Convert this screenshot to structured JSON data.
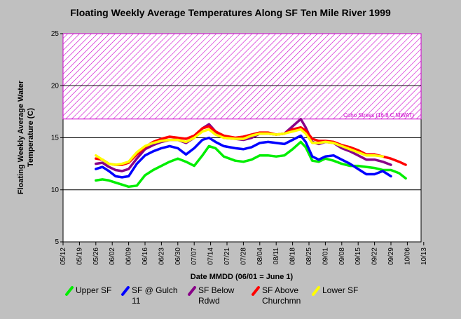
{
  "chart_data": {
    "type": "line",
    "title": "Floating Weekly Average Temperatures Along SF Ten Mile River 1999",
    "xlabel": "Date MMDD (06/01 = June 1)",
    "ylabel_line1": "Floating Weekly Average Water",
    "ylabel_line2": "Temperature (C)",
    "ylim": [
      5,
      25
    ],
    "yticks": [
      5,
      10,
      15,
      20,
      25
    ],
    "x_tick_labels": [
      "05/12",
      "05/19",
      "05/26",
      "06/02",
      "06/09",
      "06/16",
      "06/23",
      "06/30",
      "07/07",
      "07/14",
      "07/21",
      "07/28",
      "08/04",
      "08/11",
      "08/18",
      "08/25",
      "09/01",
      "09/08",
      "09/15",
      "09/22",
      "09/29",
      "10/06",
      "10/13"
    ],
    "x_range": [
      0,
      22.8
    ],
    "grid": "horizontal",
    "band": {
      "y_min": 16.8,
      "y_max": 25,
      "color": "#cc00cc",
      "label": "Coho Stress (16.8 C MWAT)"
    },
    "legend_position": "bottom",
    "series": [
      {
        "name": "Upper SF",
        "color": "#00ee00",
        "points": [
          [
            2.0,
            10.9
          ],
          [
            2.4,
            11.0
          ],
          [
            2.8,
            10.9
          ],
          [
            3.2,
            10.7
          ],
          [
            3.6,
            10.5
          ],
          [
            4.0,
            10.3
          ],
          [
            4.5,
            10.4
          ],
          [
            5.0,
            11.4
          ],
          [
            5.5,
            11.9
          ],
          [
            6.0,
            12.3
          ],
          [
            6.5,
            12.7
          ],
          [
            7.0,
            13.0
          ],
          [
            7.5,
            12.7
          ],
          [
            8.0,
            12.3
          ],
          [
            8.5,
            13.3
          ],
          [
            8.9,
            14.2
          ],
          [
            9.3,
            14.0
          ],
          [
            9.8,
            13.2
          ],
          [
            10.5,
            12.8
          ],
          [
            11.0,
            12.7
          ],
          [
            11.5,
            12.9
          ],
          [
            12.0,
            13.3
          ],
          [
            12.5,
            13.3
          ],
          [
            13.0,
            13.2
          ],
          [
            13.5,
            13.3
          ],
          [
            14.0,
            13.9
          ],
          [
            14.5,
            14.6
          ],
          [
            14.8,
            14.1
          ],
          [
            15.2,
            12.8
          ],
          [
            15.6,
            12.7
          ],
          [
            16.0,
            13.0
          ],
          [
            16.5,
            12.8
          ],
          [
            17.0,
            12.5
          ],
          [
            17.5,
            12.3
          ],
          [
            18.0,
            12.3
          ],
          [
            18.5,
            12.2
          ],
          [
            19.0,
            12.1
          ],
          [
            19.5,
            11.9
          ],
          [
            20.0,
            11.9
          ],
          [
            20.5,
            11.6
          ],
          [
            20.9,
            11.1
          ]
        ]
      },
      {
        "name": "SF @ Gulch 11",
        "name_line1": "SF @ Gulch",
        "name_line2": "11",
        "color": "#0000ff",
        "points": [
          [
            2.0,
            12.0
          ],
          [
            2.4,
            12.2
          ],
          [
            2.8,
            11.8
          ],
          [
            3.2,
            11.3
          ],
          [
            3.6,
            11.2
          ],
          [
            4.0,
            11.3
          ],
          [
            4.5,
            12.5
          ],
          [
            5.0,
            13.3
          ],
          [
            5.5,
            13.7
          ],
          [
            6.0,
            14.0
          ],
          [
            6.5,
            14.2
          ],
          [
            7.0,
            14.0
          ],
          [
            7.5,
            13.4
          ],
          [
            8.0,
            14.0
          ],
          [
            8.5,
            14.8
          ],
          [
            8.9,
            15.0
          ],
          [
            9.3,
            14.6
          ],
          [
            9.8,
            14.2
          ],
          [
            10.5,
            14.0
          ],
          [
            11.0,
            13.9
          ],
          [
            11.5,
            14.1
          ],
          [
            12.0,
            14.5
          ],
          [
            12.5,
            14.6
          ],
          [
            13.0,
            14.5
          ],
          [
            13.5,
            14.4
          ],
          [
            14.0,
            14.8
          ],
          [
            14.5,
            15.2
          ],
          [
            14.8,
            14.6
          ],
          [
            15.2,
            13.2
          ],
          [
            15.6,
            12.9
          ],
          [
            16.0,
            13.2
          ],
          [
            16.5,
            13.3
          ],
          [
            17.0,
            12.9
          ],
          [
            17.5,
            12.5
          ],
          [
            18.0,
            12.0
          ],
          [
            18.5,
            11.5
          ],
          [
            19.0,
            11.5
          ],
          [
            19.5,
            11.8
          ],
          [
            20.0,
            11.3
          ]
        ]
      },
      {
        "name": "SF Below Rdwd",
        "name_line1": "SF Below",
        "name_line2": "Rdwd",
        "color": "#880088",
        "points": [
          [
            2.0,
            12.5
          ],
          [
            2.4,
            12.6
          ],
          [
            2.8,
            12.2
          ],
          [
            3.2,
            11.9
          ],
          [
            3.6,
            11.8
          ],
          [
            4.0,
            12.0
          ],
          [
            4.5,
            13.0
          ],
          [
            5.0,
            13.9
          ],
          [
            5.5,
            14.3
          ],
          [
            6.0,
            14.6
          ],
          [
            6.5,
            14.8
          ],
          [
            7.0,
            14.8
          ],
          [
            7.5,
            14.5
          ],
          [
            8.0,
            15.0
          ],
          [
            8.5,
            15.9
          ],
          [
            8.9,
            16.3
          ],
          [
            9.3,
            15.6
          ],
          [
            9.8,
            15.0
          ],
          [
            10.5,
            14.9
          ],
          [
            11.0,
            14.8
          ],
          [
            11.5,
            15.0
          ],
          [
            12.0,
            15.4
          ],
          [
            12.5,
            15.4
          ],
          [
            13.0,
            15.3
          ],
          [
            13.5,
            15.4
          ],
          [
            14.0,
            16.1
          ],
          [
            14.5,
            16.8
          ],
          [
            14.8,
            16.0
          ],
          [
            15.2,
            14.6
          ],
          [
            15.6,
            14.4
          ],
          [
            16.0,
            14.6
          ],
          [
            16.5,
            14.5
          ],
          [
            17.0,
            14.0
          ],
          [
            17.5,
            13.7
          ],
          [
            18.0,
            13.3
          ],
          [
            18.5,
            12.9
          ],
          [
            19.0,
            12.9
          ],
          [
            19.5,
            12.7
          ],
          [
            20.0,
            12.4
          ]
        ]
      },
      {
        "name": "SF Above Churchmn",
        "name_line1": "SF Above",
        "name_line2": "Churchmn",
        "color": "#ff0000",
        "points": [
          [
            2.0,
            13.0
          ],
          [
            2.4,
            12.9
          ],
          [
            2.8,
            12.5
          ],
          [
            3.2,
            12.4
          ],
          [
            3.6,
            12.4
          ],
          [
            4.0,
            12.6
          ],
          [
            4.5,
            13.4
          ],
          [
            5.0,
            14.1
          ],
          [
            5.5,
            14.6
          ],
          [
            6.0,
            14.9
          ],
          [
            6.5,
            15.1
          ],
          [
            7.0,
            15.0
          ],
          [
            7.5,
            14.9
          ],
          [
            8.0,
            15.2
          ],
          [
            8.5,
            15.9
          ],
          [
            8.9,
            16.1
          ],
          [
            9.3,
            15.6
          ],
          [
            9.8,
            15.2
          ],
          [
            10.5,
            15.0
          ],
          [
            11.0,
            15.1
          ],
          [
            11.5,
            15.3
          ],
          [
            12.0,
            15.5
          ],
          [
            12.5,
            15.5
          ],
          [
            13.0,
            15.3
          ],
          [
            13.5,
            15.4
          ],
          [
            14.0,
            15.8
          ],
          [
            14.5,
            16.0
          ],
          [
            14.8,
            15.7
          ],
          [
            15.2,
            14.9
          ],
          [
            15.6,
            14.7
          ],
          [
            16.0,
            14.7
          ],
          [
            16.5,
            14.6
          ],
          [
            17.0,
            14.3
          ],
          [
            17.5,
            14.1
          ],
          [
            18.0,
            13.8
          ],
          [
            18.5,
            13.4
          ],
          [
            19.0,
            13.4
          ],
          [
            19.5,
            13.2
          ],
          [
            20.0,
            13.0
          ],
          [
            20.5,
            12.7
          ],
          [
            20.9,
            12.4
          ]
        ]
      },
      {
        "name": "Lower SF",
        "color": "#ffff00",
        "points": [
          [
            2.0,
            13.3
          ],
          [
            2.4,
            12.9
          ],
          [
            2.8,
            12.5
          ],
          [
            3.2,
            12.4
          ],
          [
            3.6,
            12.5
          ],
          [
            4.0,
            12.7
          ],
          [
            4.5,
            13.6
          ],
          [
            5.0,
            14.2
          ],
          [
            5.5,
            14.5
          ],
          [
            6.0,
            14.7
          ],
          [
            6.5,
            14.8
          ],
          [
            7.0,
            14.8
          ],
          [
            7.5,
            14.6
          ],
          [
            8.0,
            15.0
          ],
          [
            8.5,
            15.6
          ],
          [
            8.9,
            15.8
          ],
          [
            9.3,
            15.3
          ],
          [
            9.8,
            15.0
          ],
          [
            10.5,
            14.9
          ],
          [
            11.0,
            14.9
          ],
          [
            11.5,
            15.2
          ],
          [
            12.0,
            15.4
          ],
          [
            12.5,
            15.4
          ],
          [
            13.0,
            15.3
          ],
          [
            13.5,
            15.4
          ],
          [
            14.0,
            15.6
          ],
          [
            14.5,
            15.8
          ],
          [
            14.8,
            15.4
          ],
          [
            15.2,
            14.5
          ],
          [
            15.6,
            14.5
          ],
          [
            16.0,
            14.6
          ],
          [
            16.5,
            14.5
          ],
          [
            17.0,
            14.2
          ],
          [
            17.5,
            13.9
          ],
          [
            18.0,
            13.6
          ],
          [
            18.5,
            13.3
          ],
          [
            19.0,
            13.3
          ],
          [
            19.5,
            13.2
          ]
        ]
      }
    ]
  }
}
